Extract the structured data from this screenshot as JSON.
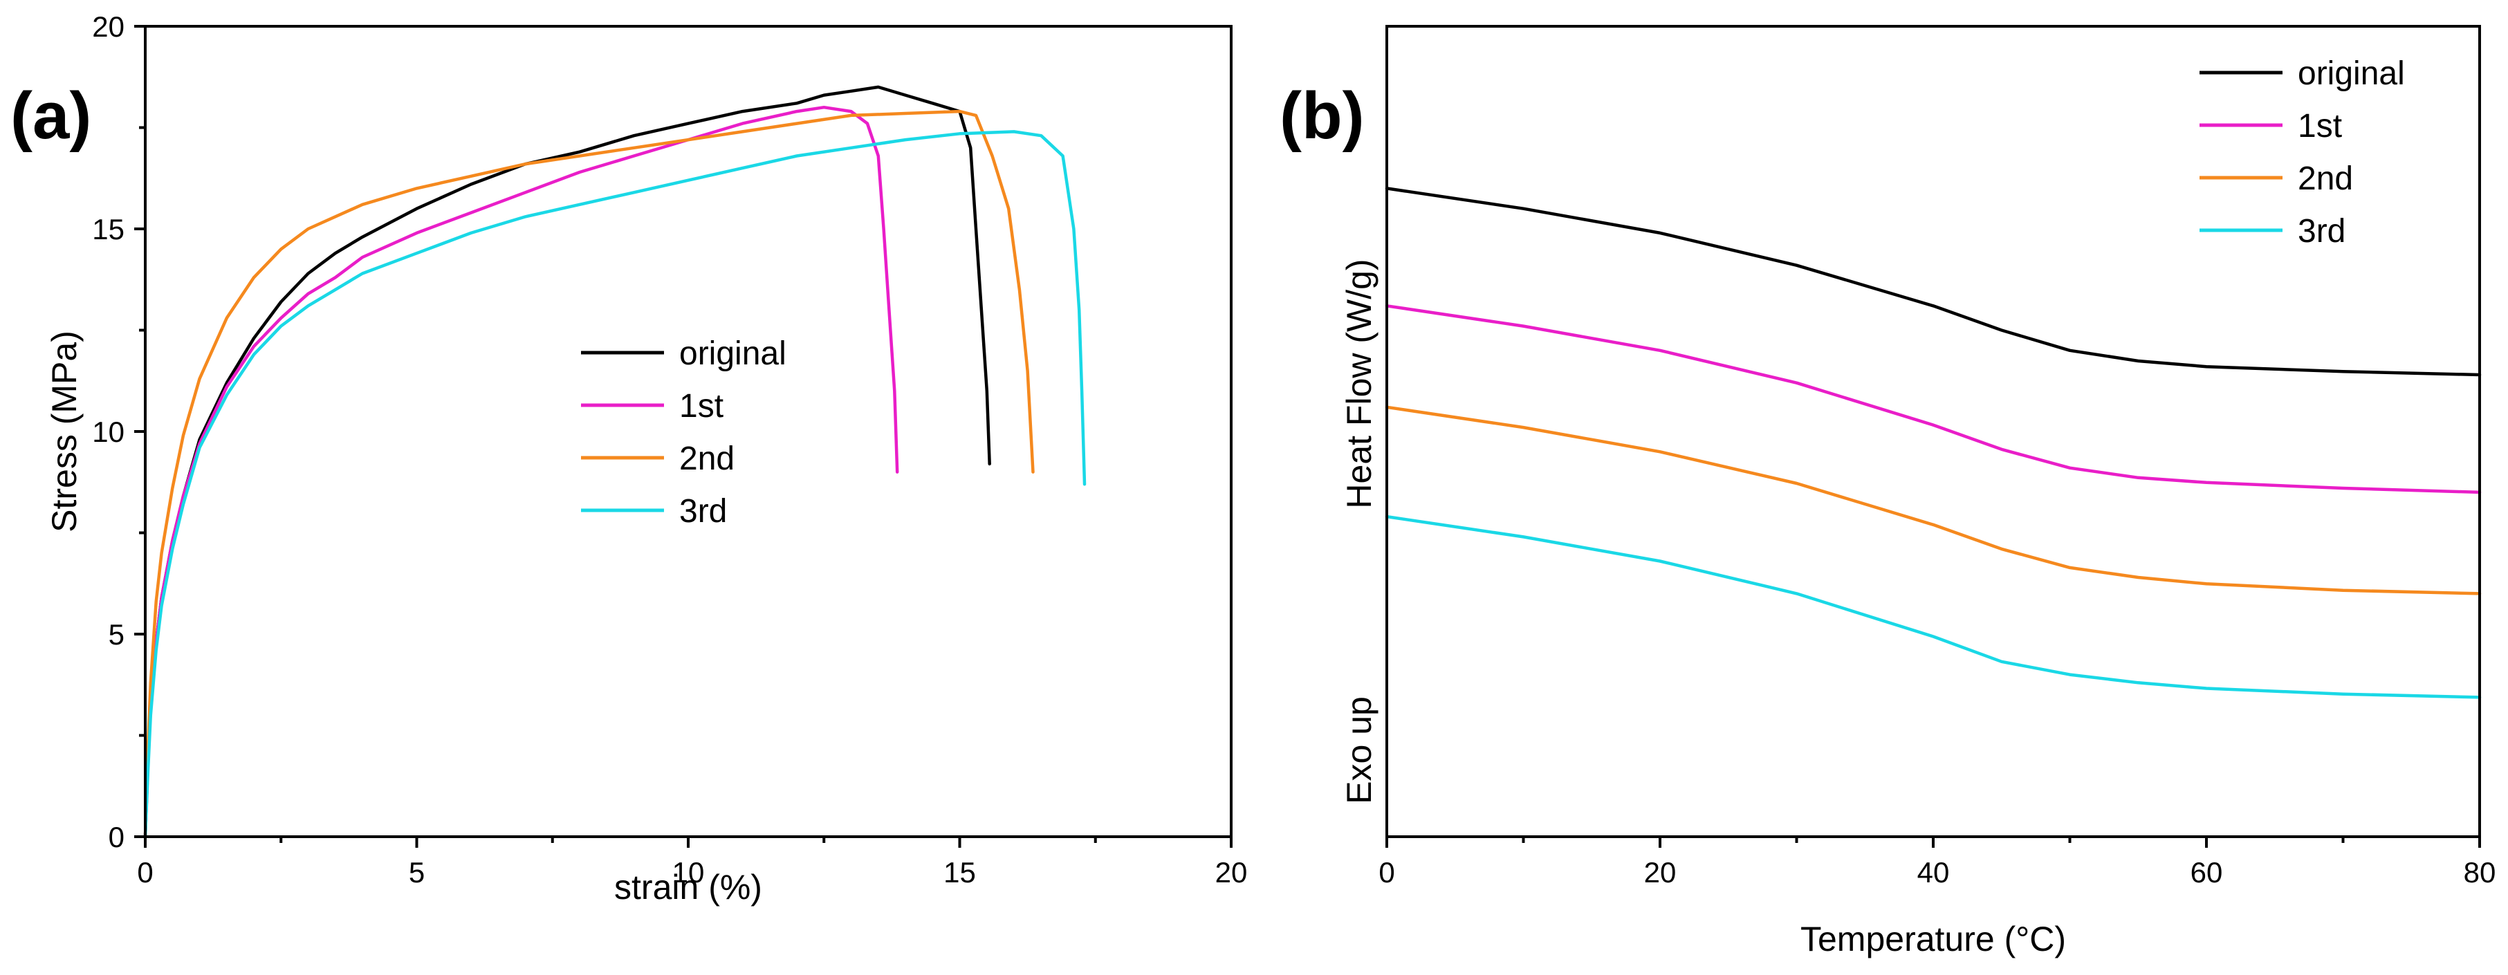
{
  "chart_data": [
    {
      "panel_label": "(a)",
      "type": "line",
      "title": "",
      "xlabel": "strain (%)",
      "ylabel": "Stress (MPa)",
      "xlim": [
        0,
        20
      ],
      "ylim": [
        0,
        20
      ],
      "xticks": [
        0,
        5,
        10,
        15,
        20
      ],
      "yticks": [
        0,
        5,
        10,
        15,
        20
      ],
      "legend_position": "center-right",
      "series": [
        {
          "name": "original",
          "color": "#000000",
          "x": [
            0,
            0.05,
            0.1,
            0.2,
            0.3,
            0.5,
            0.7,
            1.0,
            1.5,
            2.0,
            2.5,
            3.0,
            3.5,
            4.0,
            5.0,
            6.0,
            7.0,
            8.0,
            9.0,
            10.0,
            11.0,
            12.0,
            12.5,
            13.0,
            13.5,
            14.0,
            14.5,
            15.0,
            15.2,
            15.3,
            15.4,
            15.5,
            15.55
          ],
          "y": [
            0,
            1.8,
            3.2,
            4.8,
            5.9,
            7.3,
            8.4,
            9.8,
            11.2,
            12.3,
            13.2,
            13.9,
            14.4,
            14.8,
            15.5,
            16.1,
            16.6,
            16.9,
            17.3,
            17.6,
            17.9,
            18.1,
            18.3,
            18.4,
            18.5,
            18.3,
            18.1,
            17.9,
            17.0,
            15.0,
            13.0,
            11.0,
            9.2
          ]
        },
        {
          "name": "1st",
          "color": "#e91ec8",
          "x": [
            0,
            0.05,
            0.1,
            0.2,
            0.3,
            0.5,
            0.7,
            1.0,
            1.5,
            2.0,
            2.5,
            3.0,
            3.5,
            4.0,
            5.0,
            6.0,
            7.0,
            8.0,
            9.0,
            10.0,
            11.0,
            12.0,
            12.5,
            13.0,
            13.3,
            13.5,
            13.6,
            13.7,
            13.8,
            13.85
          ],
          "y": [
            0,
            1.8,
            3.2,
            4.8,
            5.9,
            7.3,
            8.4,
            9.7,
            11.1,
            12.1,
            12.8,
            13.4,
            13.8,
            14.3,
            14.9,
            15.4,
            15.9,
            16.4,
            16.8,
            17.2,
            17.6,
            17.9,
            18.0,
            17.9,
            17.6,
            16.8,
            15.0,
            13.0,
            11.0,
            9.0
          ]
        },
        {
          "name": "2nd",
          "color": "#f5891e",
          "x": [
            0,
            0.05,
            0.1,
            0.2,
            0.3,
            0.5,
            0.7,
            1.0,
            1.5,
            2.0,
            2.5,
            3.0,
            4.0,
            5.0,
            6.0,
            7.0,
            8.0,
            9.0,
            10.0,
            11.0,
            12.0,
            13.0,
            14.0,
            15.0,
            15.3,
            15.6,
            15.9,
            16.1,
            16.25,
            16.35
          ],
          "y": [
            0,
            2.2,
            3.8,
            5.8,
            7.0,
            8.6,
            9.9,
            11.3,
            12.8,
            13.8,
            14.5,
            15.0,
            15.6,
            16.0,
            16.3,
            16.6,
            16.8,
            17.0,
            17.2,
            17.4,
            17.6,
            17.8,
            17.85,
            17.9,
            17.8,
            16.8,
            15.5,
            13.5,
            11.5,
            9.0
          ]
        },
        {
          "name": "3rd",
          "color": "#1ad8e6",
          "x": [
            0,
            0.05,
            0.1,
            0.2,
            0.3,
            0.5,
            0.7,
            1.0,
            1.5,
            2.0,
            2.5,
            3.0,
            3.5,
            4.0,
            5.0,
            6.0,
            7.0,
            8.0,
            9.0,
            10.0,
            11.0,
            12.0,
            13.0,
            14.0,
            15.0,
            16.0,
            16.5,
            16.9,
            17.1,
            17.2,
            17.25,
            17.3
          ],
          "y": [
            0,
            1.6,
            3.0,
            4.6,
            5.7,
            7.1,
            8.2,
            9.6,
            10.9,
            11.9,
            12.6,
            13.1,
            13.5,
            13.9,
            14.4,
            14.9,
            15.3,
            15.6,
            15.9,
            16.2,
            16.5,
            16.8,
            17.0,
            17.2,
            17.35,
            17.4,
            17.3,
            16.8,
            15.0,
            13.0,
            11.0,
            8.7
          ]
        }
      ]
    },
    {
      "panel_label": "(b)",
      "type": "line",
      "title": "",
      "xlabel": "Temperature (°C)",
      "ylabel": "Heat Flow (W/g)",
      "y_annotation": "Exo up",
      "xlim": [
        0,
        80
      ],
      "ylim": [
        0,
        1
      ],
      "xticks": [
        0,
        20,
        40,
        60,
        80
      ],
      "yticks": [],
      "legend_position": "top-right",
      "series": [
        {
          "name": "original",
          "color": "#000000",
          "x": [
            0,
            10,
            20,
            30,
            40,
            45,
            50,
            55,
            60,
            70,
            80
          ],
          "y": [
            0.8,
            0.775,
            0.745,
            0.705,
            0.655,
            0.625,
            0.6,
            0.587,
            0.58,
            0.574,
            0.57
          ]
        },
        {
          "name": "1st",
          "color": "#e91ec8",
          "x": [
            0,
            10,
            20,
            30,
            40,
            45,
            50,
            55,
            60,
            70,
            80
          ],
          "y": [
            0.655,
            0.63,
            0.6,
            0.56,
            0.508,
            0.478,
            0.455,
            0.443,
            0.437,
            0.43,
            0.425
          ]
        },
        {
          "name": "2nd",
          "color": "#f5891e",
          "x": [
            0,
            10,
            20,
            30,
            40,
            45,
            50,
            55,
            60,
            70,
            80
          ],
          "y": [
            0.53,
            0.505,
            0.475,
            0.436,
            0.385,
            0.355,
            0.332,
            0.32,
            0.312,
            0.304,
            0.3
          ]
        },
        {
          "name": "3rd",
          "color": "#1ad8e6",
          "x": [
            0,
            10,
            20,
            30,
            40,
            45,
            50,
            55,
            60,
            70,
            80
          ],
          "y": [
            0.395,
            0.37,
            0.34,
            0.3,
            0.247,
            0.216,
            0.2,
            0.19,
            0.183,
            0.176,
            0.172
          ]
        }
      ]
    }
  ]
}
